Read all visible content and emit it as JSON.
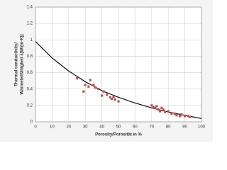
{
  "chart_data": {
    "type": "scatter",
    "xlabel": "Porosity/Porosität in %",
    "ylabel": [
      "Thermal conductivity/",
      "Wärmeleitfähigkeit λ[W/(m·K)]"
    ],
    "xlim": [
      0,
      100
    ],
    "xticks": [
      0,
      10,
      20,
      30,
      40,
      50,
      60,
      70,
      80,
      90,
      100
    ],
    "ylim": [
      0,
      1.4
    ],
    "yticks": [
      0,
      0.2,
      0.4,
      0.6,
      0.8,
      1,
      1.2,
      1.4
    ],
    "grid": true,
    "series": [
      {
        "kind": "line",
        "color": "#111111",
        "x": [
          0,
          10,
          20,
          30,
          40,
          50,
          60,
          70,
          80,
          90,
          100
        ],
        "values": [
          0.98,
          0.78,
          0.62,
          0.49,
          0.38,
          0.3,
          0.23,
          0.17,
          0.12,
          0.08,
          0.04
        ]
      },
      {
        "kind": "scatter",
        "color": "#c0504d",
        "x": [
          25,
          29,
          30,
          32,
          33,
          35,
          36,
          38,
          40,
          41,
          43,
          45,
          46,
          47,
          48,
          50,
          70,
          71,
          72,
          73,
          74,
          75,
          76,
          77,
          78,
          80,
          82,
          84,
          85,
          87,
          88,
          90,
          92,
          93
        ],
        "values": [
          0.53,
          0.37,
          0.45,
          0.43,
          0.51,
          0.45,
          0.42,
          0.4,
          0.32,
          0.37,
          0.33,
          0.3,
          0.28,
          0.3,
          0.27,
          0.25,
          0.2,
          0.18,
          0.17,
          0.19,
          0.15,
          0.13,
          0.17,
          0.15,
          0.12,
          0.13,
          0.1,
          0.1,
          0.08,
          0.07,
          0.09,
          0.07,
          0.07,
          0.06
        ]
      }
    ]
  }
}
